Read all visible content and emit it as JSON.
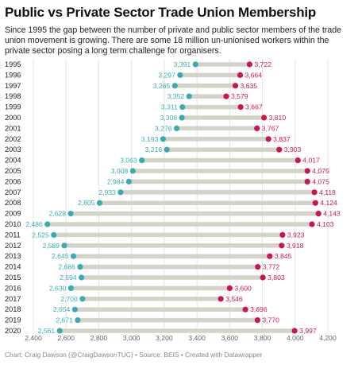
{
  "header": {
    "title": "Public vs Private Sector Trade Union Membership",
    "subtitle": "Since 1995 the gap between the number of private and public sector members of the trade union movement is growing. There are some 18 million un-unionised workers within the private sector posing a long term challenge for organisers."
  },
  "footer": {
    "credit": "Chart: Craig Dawson (@CraigDawsonTUC) • Source: BEIS • Created with Datawrapper"
  },
  "chart_data": {
    "type": "dumbbell",
    "categories": [
      "1995",
      "1996",
      "1997",
      "1998",
      "1999",
      "2000",
      "2001",
      "2002",
      "2003",
      "2004",
      "2005",
      "2006",
      "2007",
      "2008",
      "2009",
      "2010",
      "2011",
      "2012",
      "2013",
      "2014",
      "2015",
      "2016",
      "2017",
      "2018",
      "2019",
      "2020"
    ],
    "series": [
      {
        "color": "#3aabb0",
        "values": [
          3391,
          3297,
          3265,
          3352,
          3311,
          3308,
          3276,
          3193,
          3216,
          3063,
          3008,
          2984,
          2933,
          2805,
          2628,
          2486,
          2525,
          2589,
          2645,
          2686,
          2694,
          2630,
          2700,
          2654,
          2671,
          2561
        ],
        "labels": [
          "3,391",
          "3,297",
          "3,265",
          "3,352",
          "3,311",
          "3,308",
          "3,276",
          "3,193",
          "3,216",
          "3,063",
          "3,008",
          "2,984",
          "2,933",
          "2,805",
          "2,628",
          "2,486",
          "2,525",
          "2,589",
          "2,645",
          "2,686",
          "2,694",
          "2,630",
          "2,700",
          "2,654",
          "2,671",
          "2,561"
        ]
      },
      {
        "color": "#cc1451",
        "values": [
          3722,
          3664,
          3635,
          3579,
          3667,
          3810,
          3767,
          3837,
          3903,
          4017,
          4075,
          4075,
          4118,
          4124,
          4143,
          4103,
          3923,
          3918,
          3845,
          3772,
          3803,
          3600,
          3546,
          3696,
          3770,
          3997
        ],
        "labels": [
          "3,722",
          "3,664",
          "3,635",
          "3,579",
          "3,667",
          "3,810",
          "3,767",
          "3,837",
          "3,903",
          "4,017",
          "4,075",
          "4,075",
          "4,118",
          "4,124",
          "4,143",
          "4,103",
          "3,923",
          "3,918",
          "3,845",
          "3,772",
          "3,803",
          "3,600",
          "3,546",
          "3,696",
          "3,770",
          "3,997"
        ]
      }
    ],
    "xlim": [
      2400,
      4200
    ],
    "xticks": [
      2400,
      2600,
      2800,
      3000,
      3200,
      3400,
      3600,
      3800,
      4000,
      4200
    ],
    "xtick_labels": [
      "2,400",
      "2,600",
      "2,800",
      "3,000",
      "3,200",
      "3,400",
      "3,600",
      "3,800",
      "4,000",
      "4,200"
    ],
    "grid": true,
    "range_bar_color": "#d3d3c7"
  }
}
